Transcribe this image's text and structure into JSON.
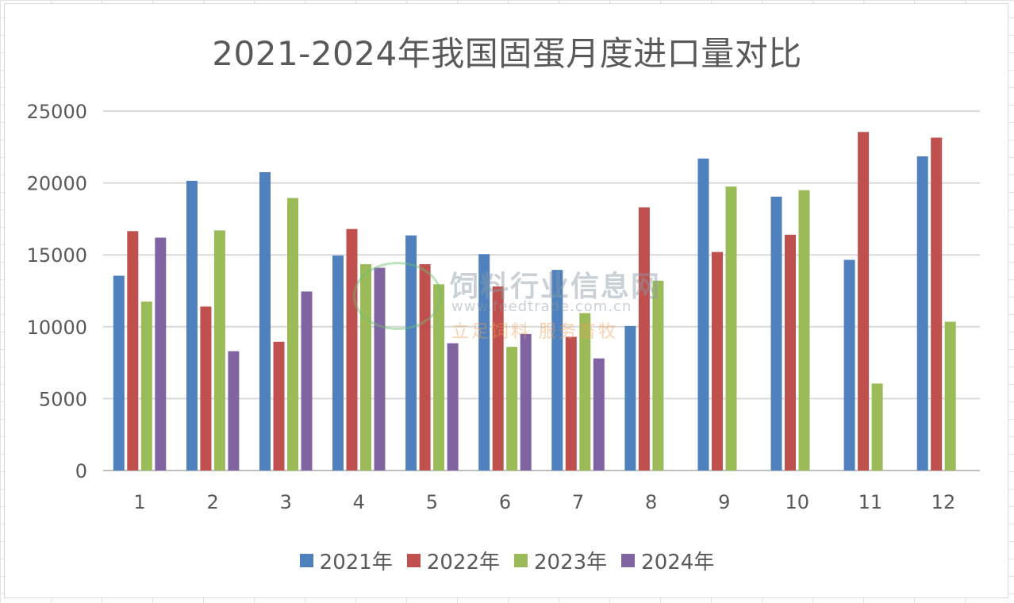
{
  "chart_data": {
    "type": "bar",
    "title": "2021-2024年我国固蛋月度进口量对比",
    "xlabel": "",
    "ylabel": "",
    "categories": [
      "1",
      "2",
      "3",
      "4",
      "5",
      "6",
      "7",
      "8",
      "9",
      "10",
      "11",
      "12"
    ],
    "ylim": [
      0,
      25000
    ],
    "yticks": [
      "0",
      "5000",
      "10000",
      "15000",
      "20000",
      "25000"
    ],
    "grid": true,
    "legend_position": "bottom",
    "series": [
      {
        "name": "2021年",
        "color": "#4e81bd",
        "values": [
          13550,
          20150,
          20750,
          14950,
          16350,
          15050,
          13950,
          10050,
          21700,
          19050,
          14650,
          21850
        ]
      },
      {
        "name": "2022年",
        "color": "#c0504d",
        "values": [
          16650,
          11400,
          8950,
          16800,
          14350,
          12800,
          9300,
          18300,
          15200,
          16400,
          23550,
          23150
        ]
      },
      {
        "name": "2023年",
        "color": "#9bbb59",
        "values": [
          11750,
          16700,
          18950,
          14350,
          12950,
          8600,
          10950,
          13200,
          19750,
          19500,
          6050,
          10350
        ]
      },
      {
        "name": "2024年",
        "color": "#8064a2",
        "values": [
          16200,
          8300,
          12450,
          14100,
          8850,
          9500,
          7800,
          null,
          null,
          null,
          null,
          null
        ]
      }
    ]
  },
  "watermark": {
    "line1": "饲料行业信息网",
    "line2": "www.feedtrade.com.cn",
    "line3": "立足饲料 服务畜牧"
  }
}
